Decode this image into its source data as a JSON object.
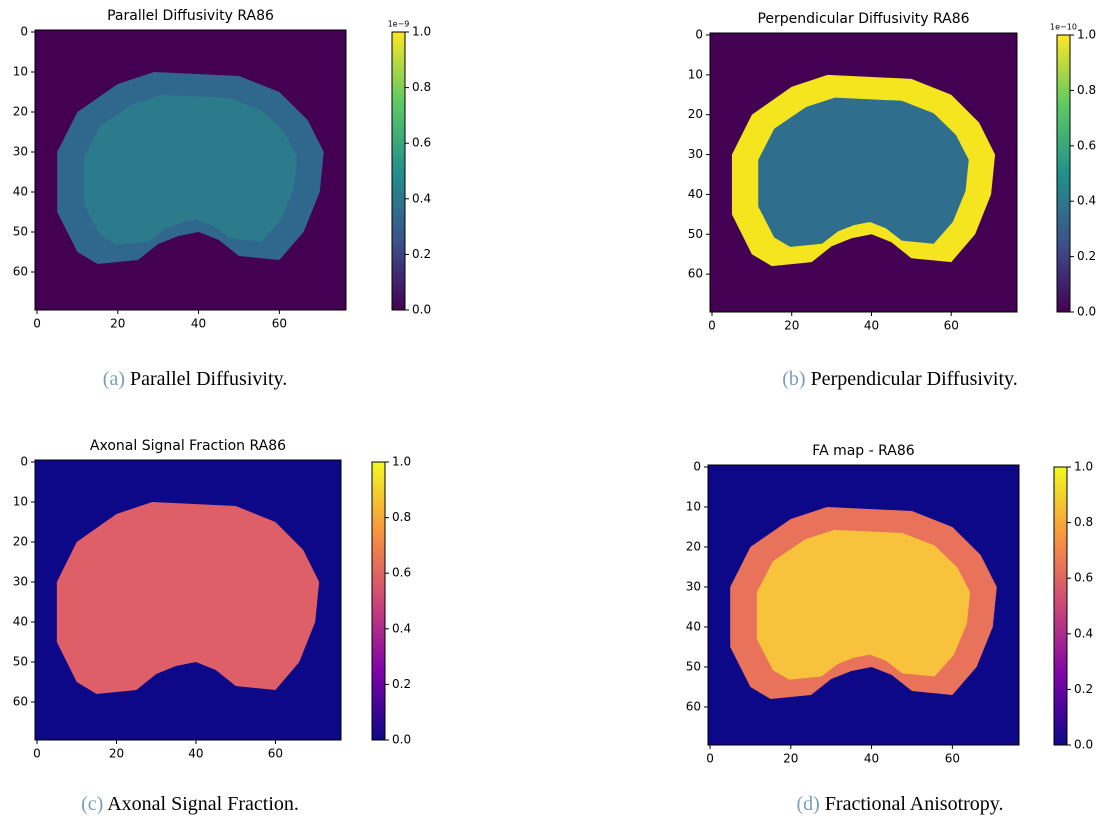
{
  "chart_data": [
    {
      "type": "heatmap",
      "title": "Parallel Diffusivity RA86",
      "colormap": "viridis",
      "xlim": [
        -0.5,
        76.5
      ],
      "ylim": [
        69.5,
        -0.5
      ],
      "xticks": [
        0,
        20,
        40,
        60
      ],
      "yticks": [
        0,
        10,
        20,
        30,
        40,
        50,
        60
      ],
      "clim": [
        0,
        1
      ],
      "cticks": [
        {
          "value": 0,
          "label": "0.0"
        },
        0.2,
        0.4,
        0.6,
        0.8,
        {
          "value": 1,
          "label": "1.0"
        }
      ],
      "colorbar_offset": "1e−9",
      "caption_label": "(a)",
      "caption": "Parallel Diffusivity."
    },
    {
      "type": "heatmap",
      "title": "Perpendicular Diffusivity RA86",
      "colormap": "viridis",
      "xlim": [
        -0.5,
        76.5
      ],
      "ylim": [
        69.5,
        -0.5
      ],
      "xticks": [
        0,
        20,
        40,
        60
      ],
      "yticks": [
        0,
        10,
        20,
        30,
        40,
        50,
        60
      ],
      "clim": [
        0,
        1
      ],
      "cticks": [
        {
          "value": 0,
          "label": "0.0"
        },
        0.2,
        0.4,
        0.6,
        0.8,
        {
          "value": 1,
          "label": "1.0"
        }
      ],
      "colorbar_offset": "1e−10",
      "caption_label": "(b)",
      "caption": "Perpendicular Diffusivity."
    },
    {
      "type": "heatmap",
      "title": "Axonal Signal Fraction RA86",
      "colormap": "plasma",
      "xlim": [
        -0.5,
        76.5
      ],
      "ylim": [
        69.5,
        -0.5
      ],
      "xticks": [
        0,
        20,
        40,
        60
      ],
      "yticks": [
        0,
        10,
        20,
        30,
        40,
        50,
        60
      ],
      "clim": [
        0,
        1
      ],
      "cticks": [
        {
          "value": 0,
          "label": "0.0"
        },
        0.2,
        0.4,
        0.6,
        0.8,
        {
          "value": 1,
          "label": "1.0"
        }
      ],
      "caption_label": "(c)",
      "caption": "Axonal Signal Fraction."
    },
    {
      "type": "heatmap",
      "title": "FA map - RA86",
      "colormap": "plasma",
      "xlim": [
        -0.5,
        76.5
      ],
      "ylim": [
        69.5,
        -0.5
      ],
      "xticks": [
        0,
        20,
        40,
        60
      ],
      "yticks": [
        0,
        10,
        20,
        30,
        40,
        50,
        60
      ],
      "clim": [
        0,
        1
      ],
      "cticks": [
        {
          "value": 0,
          "label": "0.0"
        },
        0.2,
        0.4,
        0.6,
        0.8,
        {
          "value": 1,
          "label": "1.0"
        }
      ],
      "caption_label": "(d)",
      "caption": "Fractional Anisotropy."
    }
  ]
}
